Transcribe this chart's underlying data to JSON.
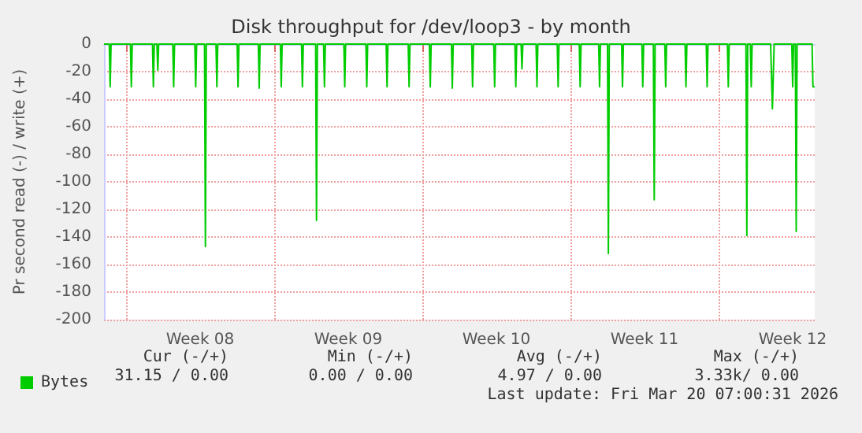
{
  "chart_data": {
    "type": "line",
    "title": "Disk throughput for /dev/loop3 - by month",
    "ylabel": "Pr second read (-) / write (+)",
    "xlim": [
      "2026-02-14T23:00",
      "2026-03-20T13:00"
    ],
    "xticks": [
      {
        "value": "2026-02-16T00:00",
        "label": null
      },
      {
        "value": "2026-02-19T12:00",
        "label": "Week 08"
      },
      {
        "value": "2026-02-23T00:00",
        "label": null
      },
      {
        "value": "2026-02-26T12:00",
        "label": "Week 09"
      },
      {
        "value": "2026-03-02T00:00",
        "label": null
      },
      {
        "value": "2026-03-05T12:00",
        "label": "Week 10"
      },
      {
        "value": "2026-03-09T00:00",
        "label": null
      },
      {
        "value": "2026-03-12T12:00",
        "label": "Week 11"
      },
      {
        "value": "2026-03-16T00:00",
        "label": null
      },
      {
        "value": "2026-03-19T12:00",
        "label": "Week 12"
      }
    ],
    "ylim": [
      -200,
      0
    ],
    "yticks": [
      -200,
      -180,
      -160,
      -140,
      -120,
      -100,
      -80,
      -60,
      -40,
      -20,
      0
    ],
    "grid": true,
    "legend": "bottom left",
    "marker": "none",
    "line_style": "solid",
    "series": [
      {
        "name": "Bytes",
        "color": "#00cc00",
        "x": [
          "2026-02-14T23:00",
          "2026-02-15T05:00",
          "2026-02-15T06:00",
          "2026-02-15T07:00",
          "2026-02-16T05:00",
          "2026-02-16T06:00",
          "2026-02-16T07:00",
          "2026-02-17T06:00",
          "2026-02-17T07:00",
          "2026-02-17T08:00",
          "2026-02-17T11:00",
          "2026-02-17T12:00",
          "2026-02-17T13:00",
          "2026-02-18T05:00",
          "2026-02-18T06:00",
          "2026-02-18T07:00",
          "2026-02-19T06:00",
          "2026-02-19T07:00",
          "2026-02-19T08:00",
          "2026-02-19T17:00",
          "2026-02-19T18:00",
          "2026-02-19T19:00",
          "2026-02-20T06:00",
          "2026-02-20T07:00",
          "2026-02-20T08:00",
          "2026-02-21T06:00",
          "2026-02-21T07:00",
          "2026-02-21T08:00",
          "2026-02-22T06:00",
          "2026-02-22T07:00",
          "2026-02-22T08:00",
          "2026-02-23T07:00",
          "2026-02-23T08:00",
          "2026-02-23T09:00",
          "2026-02-24T07:00",
          "2026-02-24T08:00",
          "2026-02-24T09:00",
          "2026-02-24T23:00",
          "2026-02-25T00:00",
          "2026-02-25T01:00",
          "2026-02-25T08:00",
          "2026-02-25T09:00",
          "2026-02-25T10:00",
          "2026-02-26T07:00",
          "2026-02-26T08:00",
          "2026-02-26T09:00",
          "2026-02-27T08:00",
          "2026-02-27T09:00",
          "2026-02-27T10:00",
          "2026-02-28T07:00",
          "2026-02-28T08:00",
          "2026-02-28T09:00",
          "2026-03-01T08:00",
          "2026-03-01T09:00",
          "2026-03-01T10:00",
          "2026-03-02T08:00",
          "2026-03-02T09:00",
          "2026-03-02T10:00",
          "2026-03-03T09:00",
          "2026-03-03T10:00",
          "2026-03-03T11:00",
          "2026-03-04T08:00",
          "2026-03-04T09:00",
          "2026-03-04T10:00",
          "2026-03-05T09:00",
          "2026-03-05T10:00",
          "2026-03-05T11:00",
          "2026-03-06T09:00",
          "2026-03-06T10:00",
          "2026-03-06T11:00",
          "2026-03-06T16:00",
          "2026-03-06T17:00",
          "2026-03-06T18:00",
          "2026-03-07T09:00",
          "2026-03-07T10:00",
          "2026-03-07T11:00",
          "2026-03-08T09:00",
          "2026-03-08T10:00",
          "2026-03-08T11:00",
          "2026-03-09T10:00",
          "2026-03-09T11:00",
          "2026-03-09T12:00",
          "2026-03-10T08:00",
          "2026-03-10T09:00",
          "2026-03-10T10:00",
          "2026-03-10T18:00",
          "2026-03-10T19:00",
          "2026-03-10T20:00",
          "2026-03-11T10:00",
          "2026-03-11T11:00",
          "2026-03-11T12:00",
          "2026-03-12T09:00",
          "2026-03-12T10:00",
          "2026-03-12T11:00",
          "2026-03-12T22:00",
          "2026-03-12T23:00",
          "2026-03-13T00:00",
          "2026-03-13T11:00",
          "2026-03-13T12:00",
          "2026-03-13T13:00",
          "2026-03-14T10:00",
          "2026-03-14T11:00",
          "2026-03-14T12:00",
          "2026-03-15T10:00",
          "2026-03-15T11:00",
          "2026-03-15T12:00",
          "2026-03-16T10:00",
          "2026-03-16T11:00",
          "2026-03-16T12:00",
          "2026-03-17T07:00",
          "2026-03-17T08:00",
          "2026-03-17T09:00",
          "2026-03-17T12:00",
          "2026-03-17T13:00",
          "2026-03-17T14:00",
          "2026-03-18T11:00",
          "2026-03-18T13:00",
          "2026-03-18T15:00",
          "2026-03-19T11:00",
          "2026-03-19T12:00",
          "2026-03-19T13:00",
          "2026-03-19T15:00",
          "2026-03-19T16:00",
          "2026-03-19T17:00",
          "2026-03-20T10:00",
          "2026-03-20T11:00",
          "2026-03-20T13:00"
        ],
        "values": [
          0,
          0,
          -31,
          0,
          0,
          -31,
          0,
          0,
          -31,
          0,
          0,
          -19,
          0,
          0,
          -31,
          0,
          0,
          -31,
          0,
          0,
          -147,
          0,
          0,
          -31,
          0,
          0,
          -31,
          0,
          0,
          -32,
          0,
          0,
          -31,
          0,
          0,
          -31,
          0,
          0,
          -128,
          0,
          0,
          -31,
          0,
          0,
          -31,
          0,
          0,
          -31,
          0,
          0,
          -31,
          0,
          0,
          -31,
          0,
          0,
          -31,
          0,
          0,
          -32,
          0,
          0,
          -31,
          0,
          0,
          -31,
          0,
          0,
          -31,
          0,
          0,
          -18,
          0,
          0,
          -31,
          0,
          0,
          -31,
          0,
          0,
          -31,
          0,
          0,
          -31,
          0,
          0,
          -152,
          0,
          0,
          -31,
          0,
          0,
          -31,
          0,
          0,
          -113,
          0,
          0,
          -31,
          0,
          0,
          -31,
          0,
          0,
          -31,
          0,
          0,
          -31,
          0,
          0,
          -139,
          0,
          0,
          -31,
          0,
          0,
          -47,
          0,
          0,
          -31,
          0,
          0,
          -136,
          0,
          0,
          -31,
          -31
        ]
      }
    ],
    "annotations": [
      "Cur (-/+)",
      "Min (-/+)",
      "Avg (-/+)",
      "Max (-/+)",
      "31.15 / 0.00",
      "0.00 / 0.00",
      "4.97 / 0.00",
      "3.33k/ 0.00",
      "Last update: Fri Mar 20 07:00:31 2026"
    ]
  }
}
